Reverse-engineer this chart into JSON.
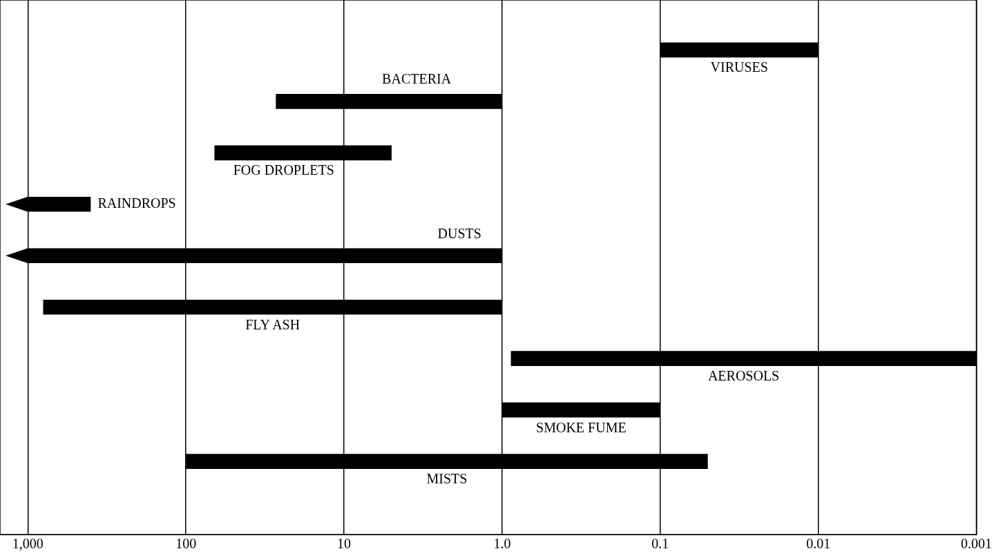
{
  "chart_data": {
    "type": "bar",
    "orientation": "horizontal",
    "categories": [
      null,
      null,
      null,
      null,
      null,
      null,
      null,
      null,
      null
    ],
    "annotations": [
      "VIRUSES",
      "BACTERIA",
      "FOG DROPLETS",
      "RAINDROPS",
      "DUSTS",
      "FLY ASH",
      "AEROSOLS",
      "SMOKE FUME",
      "MISTS"
    ],
    "base": [
      0.01,
      1,
      5,
      400,
      1,
      1,
      0.001,
      0.1,
      0.05
    ],
    "values": [
      0.09,
      26,
      61,
      600,
      999,
      799,
      0.879,
      0.9,
      99.95
    ],
    "color": "#000000",
    "log": "x",
    "xlim": [
      1500,
      0.001
    ],
    "xticks": [
      {
        "value": 1000,
        "label": "1,000"
      },
      100,
      10,
      {
        "value": 1,
        "label": "1.0"
      },
      0.1,
      0.01,
      0.001
    ],
    "grid": "x",
    "tick_labels": "x"
  }
}
